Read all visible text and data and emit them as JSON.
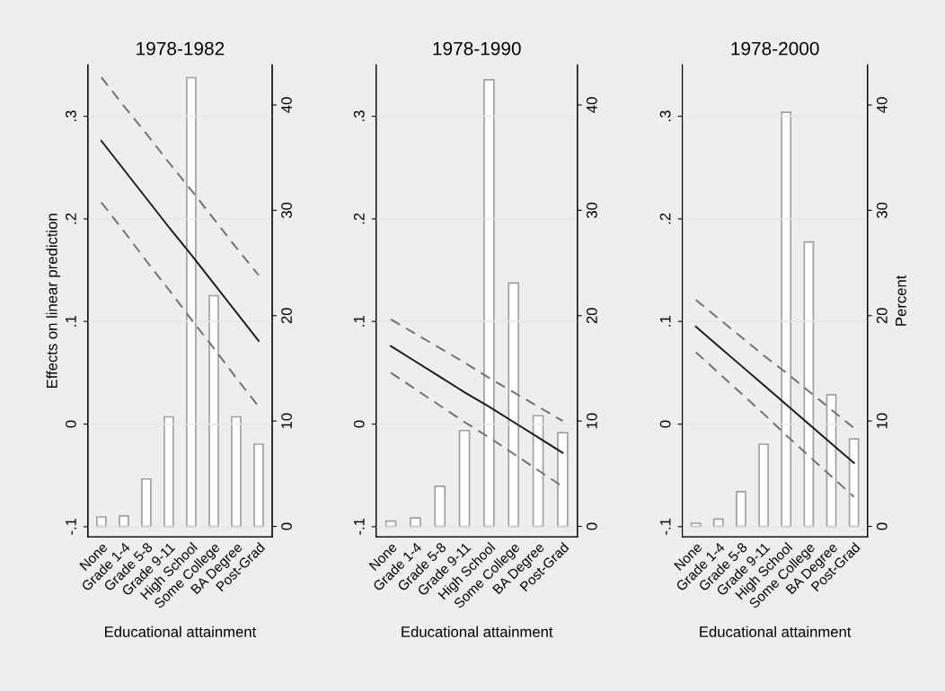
{
  "chart_data": [
    {
      "type": "bar",
      "title": "1978-1982",
      "xlabel": "Educational attainment",
      "ylabel": "Effects on linear prediction",
      "categories": [
        "None",
        "Grade 1-4",
        "Grade 5-8",
        "Grade 9-11",
        "High School",
        "Some College",
        "BA Degree",
        "Post-Grad"
      ],
      "series": [
        {
          "axis": "y2",
          "color": "#a0a0a0",
          "values": [
            0.9,
            1.0,
            4.5,
            10.4,
            42.6,
            21.9,
            10.4,
            7.8
          ]
        },
        {
          "type": "line",
          "color": "#1a1a1a",
          "line_style": "solid",
          "values": [
            0.276,
            0.248,
            0.22,
            0.192,
            0.165,
            0.137,
            0.109,
            0.081
          ]
        },
        {
          "type": "line",
          "color": "#707070",
          "line_style": "dashed",
          "values": [
            0.338,
            0.31,
            0.283,
            0.255,
            0.228,
            0.2,
            0.172,
            0.145
          ]
        },
        {
          "type": "line",
          "color": "#707070",
          "line_style": "dashed",
          "values": [
            0.216,
            0.188,
            0.159,
            0.131,
            0.102,
            0.074,
            0.045,
            0.017
          ]
        }
      ],
      "ylim": [
        -0.11,
        0.35
      ],
      "yticks": [
        {
          "value": -0.1,
          "label": "-.1"
        },
        0,
        {
          "value": 0.1,
          "label": ".1"
        },
        {
          "value": 0.2,
          "label": ".2"
        },
        {
          "value": 0.3,
          "label": ".3"
        }
      ],
      "y2lim": [
        -1,
        43.8
      ],
      "y2ticks": [
        0,
        10,
        20,
        30,
        40
      ],
      "grid": "y",
      "marker": "none"
    },
    {
      "type": "bar",
      "title": "1978-1990",
      "xlabel": "Educational attainment",
      "categories": [
        "None",
        "Grade 1-4",
        "Grade 5-8",
        "Grade 9-11",
        "High School",
        "Some College",
        "BA Degree",
        "Post-Grad"
      ],
      "series": [
        {
          "axis": "y2",
          "color": "#a0a0a0",
          "values": [
            0.5,
            0.8,
            3.8,
            9.1,
            42.4,
            23.1,
            10.5,
            8.9
          ]
        },
        {
          "type": "line",
          "color": "#1a1a1a",
          "line_style": "solid",
          "values": [
            0.076,
            0.061,
            0.046,
            0.031,
            0.017,
            0.002,
            -0.013,
            -0.028
          ]
        },
        {
          "type": "line",
          "color": "#707070",
          "line_style": "dashed",
          "values": [
            0.102,
            0.088,
            0.074,
            0.06,
            0.045,
            0.031,
            0.017,
            0.003
          ]
        },
        {
          "type": "line",
          "color": "#707070",
          "line_style": "dashed",
          "values": [
            0.05,
            0.034,
            0.018,
            0.002,
            -0.013,
            -0.029,
            -0.045,
            -0.061
          ]
        }
      ],
      "ylim": [
        -0.11,
        0.35
      ],
      "yticks": [
        {
          "value": -0.1,
          "label": "-.1"
        },
        0,
        {
          "value": 0.1,
          "label": ".1"
        },
        {
          "value": 0.2,
          "label": ".2"
        },
        {
          "value": 0.3,
          "label": ".3"
        }
      ],
      "y2lim": [
        -1,
        43.8
      ],
      "y2ticks": [
        0,
        10,
        20,
        30,
        40
      ],
      "grid": "y",
      "marker": "none"
    },
    {
      "type": "bar",
      "title": "1978-2000",
      "xlabel": "Educational attainment",
      "y2label": "Percent",
      "categories": [
        "None",
        "Grade 1-4",
        "Grade 5-8",
        "Grade 9-11",
        "High School",
        "Some College",
        "BA Degree",
        "Post-Grad"
      ],
      "series": [
        {
          "axis": "y2",
          "color": "#a0a0a0",
          "values": [
            0.3,
            0.7,
            3.3,
            7.8,
            39.3,
            27.0,
            12.5,
            8.3
          ]
        },
        {
          "type": "line",
          "color": "#1a1a1a",
          "line_style": "solid",
          "values": [
            0.095,
            0.076,
            0.057,
            0.038,
            0.019,
            0.0,
            -0.019,
            -0.038
          ]
        },
        {
          "type": "line",
          "color": "#707070",
          "line_style": "dashed",
          "values": [
            0.121,
            0.103,
            0.085,
            0.067,
            0.05,
            0.032,
            0.014,
            -0.004
          ]
        },
        {
          "type": "line",
          "color": "#707070",
          "line_style": "dashed",
          "values": [
            0.07,
            0.05,
            0.03,
            0.01,
            -0.011,
            -0.031,
            -0.051,
            -0.071
          ]
        }
      ],
      "ylim": [
        -0.11,
        0.35
      ],
      "yticks": [
        {
          "value": -0.1,
          "label": "-.1"
        },
        0,
        {
          "value": 0.1,
          "label": ".1"
        },
        {
          "value": 0.2,
          "label": ".2"
        },
        {
          "value": 0.3,
          "label": ".3"
        }
      ],
      "y2lim": [
        -1,
        43.8
      ],
      "y2ticks": [
        0,
        10,
        20,
        30,
        40
      ],
      "grid": "y",
      "marker": "none"
    }
  ]
}
